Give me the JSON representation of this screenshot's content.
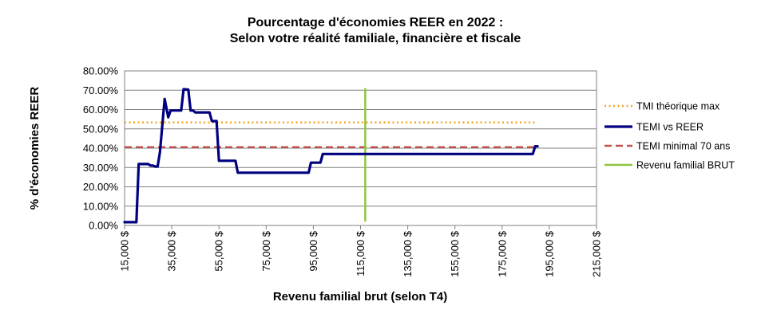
{
  "chart_data": {
    "type": "line",
    "title": "Pourcentage d'économies REER en 2022 :",
    "subtitle": "Selon votre réalité familiale, financière et fiscale",
    "xlabel": "Revenu familial brut (selon T4)",
    "ylabel": "% d'économies REER",
    "xlim": [
      15000,
      215000
    ],
    "ylim": [
      0,
      0.8
    ],
    "x_ticks": [
      "15,000 $",
      "35,000 $",
      "55,000 $",
      "75,000 $",
      "95,000 $",
      "115,000 $",
      "135,000 $",
      "155,000 $",
      "175,000 $",
      "195,000 $",
      "215,000 $"
    ],
    "y_ticks": [
      "0.00%",
      "10.00%",
      "20.00%",
      "30.00%",
      "40.00%",
      "50.00%",
      "60.00%",
      "70.00%",
      "80.00%"
    ],
    "grid": "horizontal",
    "legend_position": "right",
    "series": [
      {
        "name": "TMI théorique max",
        "color": "#F5A623",
        "style": "dotted",
        "x": [
          15000,
          190000
        ],
        "y": [
          0.533,
          0.533
        ]
      },
      {
        "name": "TEMI vs REER",
        "color": "#000080",
        "style": "solid",
        "x": [
          15000,
          20000,
          21000,
          25000,
          26000,
          27000,
          28000,
          29000,
          30000,
          31000,
          32000,
          33500,
          34500,
          35500,
          36500,
          39000,
          40000,
          42000,
          43000,
          44000,
          45000,
          47000,
          51000,
          52000,
          54000,
          55000,
          56000,
          57000,
          62000,
          63000,
          64000,
          93000,
          94000,
          98000,
          99000,
          188000,
          189000,
          190000
        ],
        "y": [
          0.017,
          0.017,
          0.318,
          0.318,
          0.31,
          0.31,
          0.305,
          0.305,
          0.38,
          0.52,
          0.655,
          0.56,
          0.595,
          0.595,
          0.595,
          0.595,
          0.705,
          0.703,
          0.595,
          0.595,
          0.585,
          0.585,
          0.585,
          0.54,
          0.54,
          0.335,
          0.335,
          0.335,
          0.335,
          0.273,
          0.273,
          0.273,
          0.325,
          0.325,
          0.37,
          0.37,
          0.41,
          0.41
        ]
      },
      {
        "name": "TEMI minimal 70 ans",
        "color": "#C0504D",
        "style": "dashed",
        "x": [
          15000,
          190000
        ],
        "y": [
          0.405,
          0.405
        ]
      },
      {
        "name": "Revenu familial BRUT",
        "color": "#8DC63F",
        "style": "solid",
        "x": [
          117000,
          117000
        ],
        "y": [
          0.02,
          0.71
        ]
      }
    ]
  }
}
